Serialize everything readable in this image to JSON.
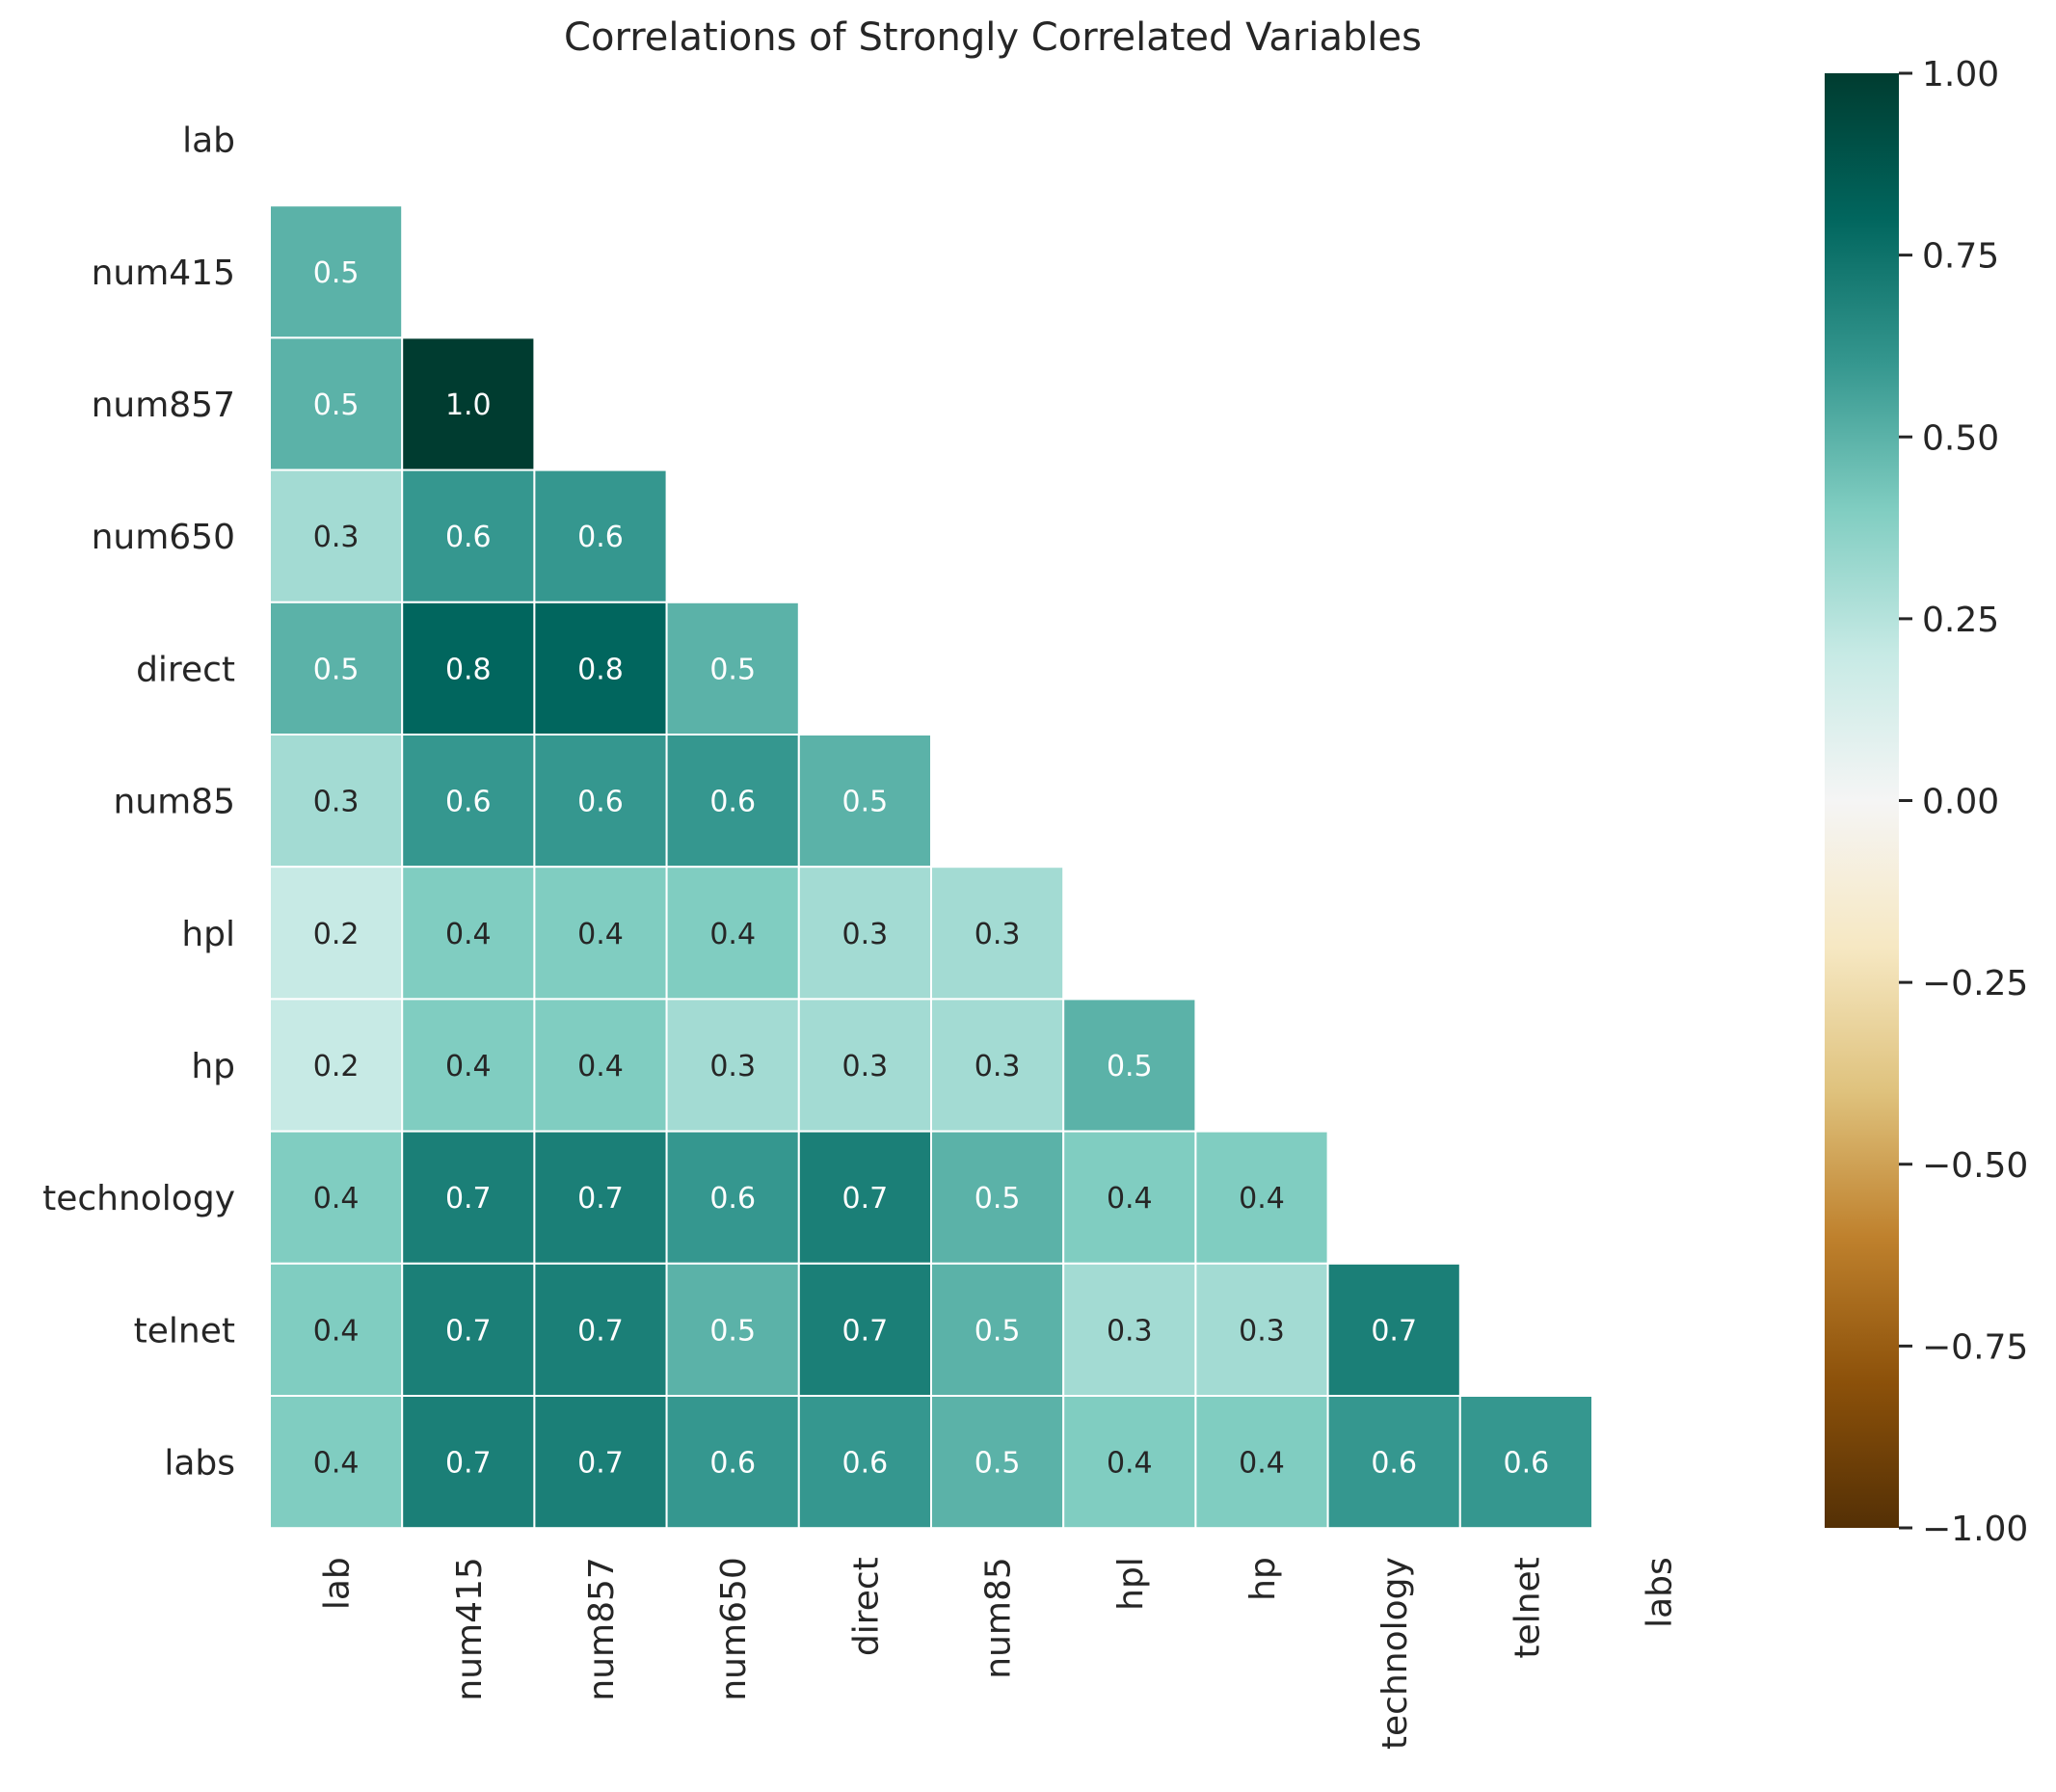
{
  "chart_data": {
    "type": "heatmap",
    "title": "Correlations of Strongly Correlated Variables",
    "variables": [
      "lab",
      "num415",
      "num857",
      "num650",
      "direct",
      "num85",
      "hpl",
      "hp",
      "technology",
      "telnet",
      "labs"
    ],
    "mask": "upper-triangle-including-diagonal",
    "matrix": [
      [],
      [
        0.5
      ],
      [
        0.5,
        1.0
      ],
      [
        0.3,
        0.6,
        0.6
      ],
      [
        0.5,
        0.8,
        0.8,
        0.5
      ],
      [
        0.3,
        0.6,
        0.6,
        0.6,
        0.5
      ],
      [
        0.2,
        0.4,
        0.4,
        0.4,
        0.3,
        0.3
      ],
      [
        0.2,
        0.4,
        0.4,
        0.3,
        0.3,
        0.3,
        0.5
      ],
      [
        0.4,
        0.7,
        0.7,
        0.6,
        0.7,
        0.5,
        0.4,
        0.4
      ],
      [
        0.4,
        0.7,
        0.7,
        0.5,
        0.7,
        0.5,
        0.3,
        0.3,
        0.7
      ],
      [
        0.4,
        0.7,
        0.7,
        0.6,
        0.6,
        0.5,
        0.4,
        0.4,
        0.6,
        0.6
      ]
    ],
    "colormap": "BrBG",
    "vmin": -1.0,
    "vmax": 1.0,
    "colorbar_ticks": [
      "1.00",
      "0.75",
      "0.50",
      "0.25",
      "0.00",
      "−0.25",
      "−0.50",
      "−0.75",
      "−1.00"
    ],
    "colorbar_tick_values": [
      1.0,
      0.75,
      0.5,
      0.25,
      0.0,
      -0.25,
      -0.5,
      -0.75,
      -1.0
    ],
    "annotation_format": "0.1f",
    "cell_border_color": "#ffffff"
  }
}
